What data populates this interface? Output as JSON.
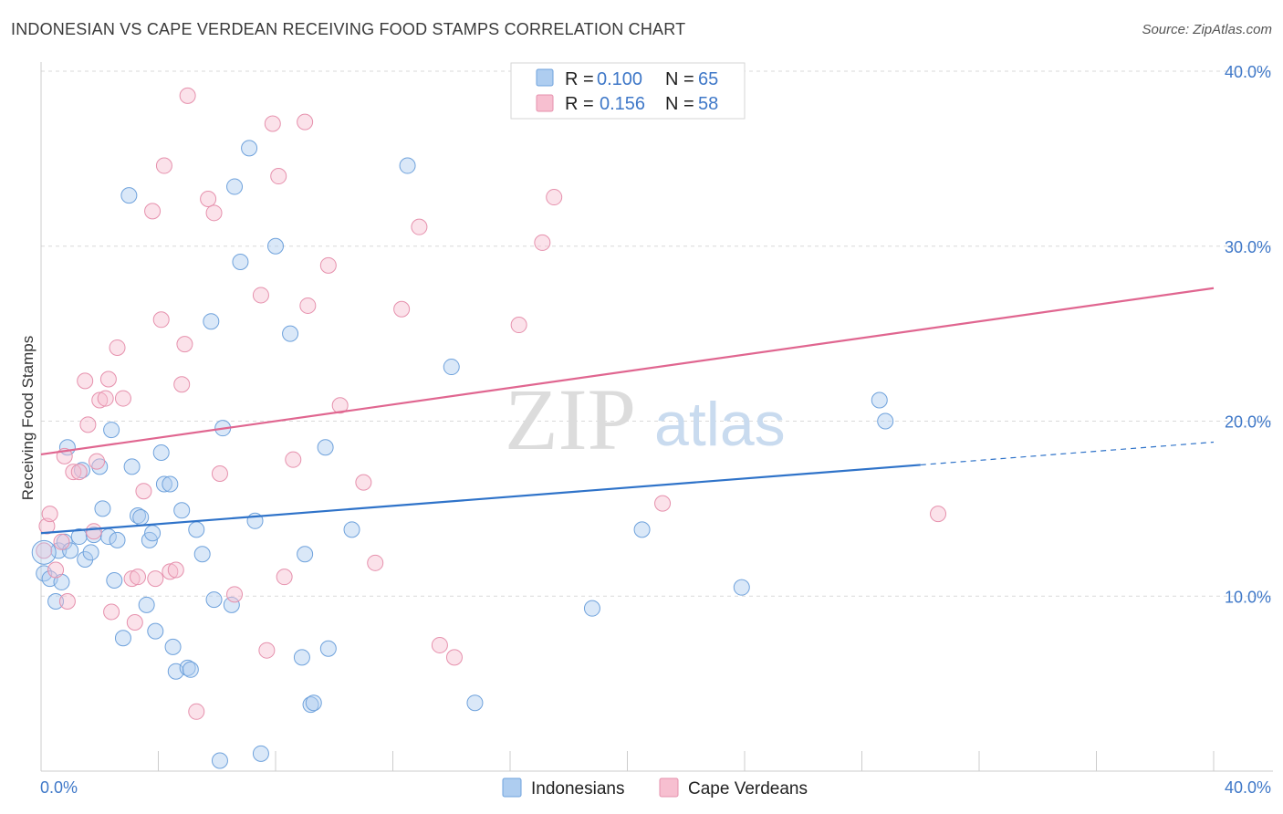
{
  "header": {
    "title": "INDONESIAN VS CAPE VERDEAN RECEIVING FOOD STAMPS CORRELATION CHART",
    "source": "Source: ZipAtlas.com"
  },
  "watermark": {
    "zip": "ZIP",
    "atlas": "atlas"
  },
  "legend": {
    "r_label": "R =",
    "n_label": "N =",
    "rows": [
      {
        "r": "0.100",
        "n": "65",
        "color": "#aecdf0"
      },
      {
        "r": "0.156",
        "n": "58",
        "color": "#f7bfd0"
      }
    ]
  },
  "bottom_legend": [
    "Indonesians",
    "Cape Verdeans"
  ],
  "chart_data": {
    "type": "scatter",
    "title": "INDONESIAN VS CAPE VERDEAN RECEIVING FOOD STAMPS CORRELATION CHART",
    "ylabel": "Receiving Food Stamps",
    "xlabel": "",
    "xlim": [
      0,
      40
    ],
    "ylim": [
      0,
      40
    ],
    "x_tick_labels": [
      "0.0%",
      "40.0%"
    ],
    "y_tick_labels": [
      "10.0%",
      "20.0%",
      "30.0%",
      "40.0%"
    ],
    "grid": true,
    "legend_position": "top-center",
    "colors": {
      "indonesians": "#2f73c9",
      "cape_verdeans": "#e06690",
      "indonesians_fill": "#aecdf0",
      "cape_verdeans_fill": "#f7bfd0"
    },
    "series": [
      {
        "name": "Indonesians",
        "r": 0.1,
        "n": 65,
        "trend": {
          "x0": 0,
          "y0": 13.6,
          "x1": 30,
          "y1": 17.5,
          "dashed_to_x": 40,
          "dashed_to_y": 18.8
        },
        "points": [
          [
            0.1,
            11.3
          ],
          [
            0.3,
            11.0
          ],
          [
            0.5,
            9.7
          ],
          [
            0.6,
            12.6
          ],
          [
            0.7,
            10.8
          ],
          [
            0.8,
            13.1
          ],
          [
            0.9,
            18.5
          ],
          [
            1.0,
            12.6
          ],
          [
            1.3,
            13.4
          ],
          [
            1.4,
            17.2
          ],
          [
            1.5,
            12.1
          ],
          [
            1.7,
            12.5
          ],
          [
            1.8,
            13.5
          ],
          [
            2.0,
            17.4
          ],
          [
            2.1,
            15.0
          ],
          [
            2.3,
            13.4
          ],
          [
            2.4,
            19.5
          ],
          [
            2.5,
            10.9
          ],
          [
            2.6,
            13.2
          ],
          [
            2.8,
            7.6
          ],
          [
            3.0,
            32.9
          ],
          [
            3.1,
            17.4
          ],
          [
            3.3,
            14.6
          ],
          [
            3.4,
            14.5
          ],
          [
            3.6,
            9.5
          ],
          [
            3.7,
            13.2
          ],
          [
            3.8,
            13.6
          ],
          [
            3.9,
            8.0
          ],
          [
            4.1,
            18.2
          ],
          [
            4.2,
            16.4
          ],
          [
            4.4,
            16.4
          ],
          [
            4.5,
            7.1
          ],
          [
            4.6,
            5.7
          ],
          [
            4.8,
            14.9
          ],
          [
            5.0,
            5.9
          ],
          [
            5.1,
            5.8
          ],
          [
            5.3,
            13.8
          ],
          [
            5.5,
            12.4
          ],
          [
            5.8,
            25.7
          ],
          [
            5.9,
            9.8
          ],
          [
            6.1,
            0.6
          ],
          [
            6.2,
            19.6
          ],
          [
            6.5,
            9.5
          ],
          [
            6.6,
            33.4
          ],
          [
            6.8,
            29.1
          ],
          [
            7.1,
            35.6
          ],
          [
            7.3,
            14.3
          ],
          [
            7.5,
            1.0
          ],
          [
            8.0,
            30.0
          ],
          [
            8.5,
            25.0
          ],
          [
            8.9,
            6.5
          ],
          [
            9.0,
            12.4
          ],
          [
            9.2,
            3.8
          ],
          [
            9.3,
            3.9
          ],
          [
            9.7,
            18.5
          ],
          [
            9.8,
            7.0
          ],
          [
            10.6,
            13.8
          ],
          [
            12.5,
            34.6
          ],
          [
            14.0,
            23.1
          ],
          [
            14.8,
            3.9
          ],
          [
            18.8,
            9.3
          ],
          [
            20.5,
            13.8
          ],
          [
            23.9,
            10.5
          ],
          [
            28.6,
            21.2
          ],
          [
            28.8,
            20.0
          ]
        ]
      },
      {
        "name": "Cape Verdeans",
        "r": 0.156,
        "n": 58,
        "trend": {
          "x0": 0,
          "y0": 18.1,
          "x1": 40,
          "y1": 27.6
        },
        "points": [
          [
            0.1,
            12.6
          ],
          [
            0.2,
            14.0
          ],
          [
            0.3,
            14.7
          ],
          [
            0.5,
            11.5
          ],
          [
            0.7,
            13.1
          ],
          [
            0.8,
            18.0
          ],
          [
            0.9,
            9.7
          ],
          [
            1.1,
            17.1
          ],
          [
            1.3,
            17.1
          ],
          [
            1.5,
            22.3
          ],
          [
            1.6,
            19.8
          ],
          [
            1.8,
            13.7
          ],
          [
            1.9,
            17.7
          ],
          [
            2.0,
            21.2
          ],
          [
            2.2,
            21.3
          ],
          [
            2.3,
            22.4
          ],
          [
            2.4,
            9.1
          ],
          [
            2.6,
            24.2
          ],
          [
            2.8,
            21.3
          ],
          [
            3.1,
            11.0
          ],
          [
            3.2,
            8.5
          ],
          [
            3.3,
            11.1
          ],
          [
            3.5,
            16.0
          ],
          [
            3.8,
            32.0
          ],
          [
            3.9,
            11.0
          ],
          [
            4.1,
            25.8
          ],
          [
            4.2,
            34.6
          ],
          [
            4.4,
            11.4
          ],
          [
            4.6,
            11.5
          ],
          [
            4.8,
            22.1
          ],
          [
            4.9,
            24.4
          ],
          [
            5.0,
            38.6
          ],
          [
            5.3,
            3.4
          ],
          [
            5.7,
            32.7
          ],
          [
            5.9,
            31.9
          ],
          [
            6.1,
            17.0
          ],
          [
            6.6,
            10.1
          ],
          [
            7.5,
            27.2
          ],
          [
            7.7,
            6.9
          ],
          [
            7.9,
            37.0
          ],
          [
            8.1,
            34.0
          ],
          [
            8.3,
            11.1
          ],
          [
            8.6,
            17.8
          ],
          [
            9.0,
            37.1
          ],
          [
            9.1,
            26.6
          ],
          [
            9.8,
            28.9
          ],
          [
            10.2,
            20.9
          ],
          [
            11.0,
            16.5
          ],
          [
            11.4,
            11.9
          ],
          [
            12.3,
            26.4
          ],
          [
            12.9,
            31.1
          ],
          [
            13.6,
            7.2
          ],
          [
            14.1,
            6.5
          ],
          [
            16.3,
            25.5
          ],
          [
            17.1,
            30.2
          ],
          [
            17.5,
            32.8
          ],
          [
            21.2,
            15.3
          ],
          [
            30.6,
            14.7
          ]
        ]
      }
    ]
  }
}
